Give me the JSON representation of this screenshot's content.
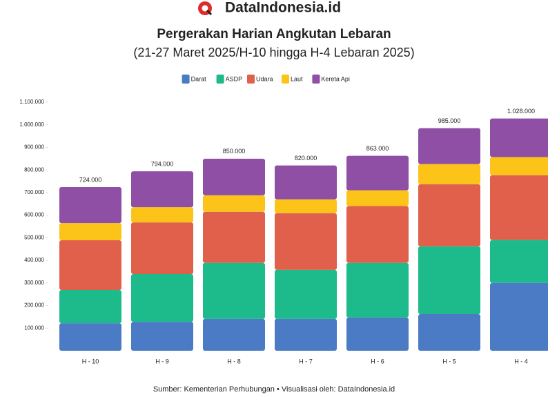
{
  "brand": "DataIndonesia.id",
  "source": "Sumber: Kementerian Perhubungan • Visualisasi oleh: DataIndonesia.id",
  "chart_data": {
    "type": "stacked-bar",
    "title": "Pergerakan Harian Angkutan Lebaran",
    "subtitle": "(21-27 Maret 2025/H-10 hingga H-4 Lebaran 2025)",
    "categories": [
      "H - 10",
      "H - 9",
      "H - 8",
      "H - 7",
      "H - 6",
      "H - 5",
      "H - 4"
    ],
    "series": [
      {
        "name": "Darat",
        "color": "#4a7bc4",
        "values": [
          122000,
          128000,
          141000,
          141000,
          147000,
          162000,
          300000
        ]
      },
      {
        "name": "ASDP",
        "color": "#1dbb8c",
        "values": [
          147000,
          211000,
          248000,
          217000,
          242000,
          300000,
          190000
        ]
      },
      {
        "name": "Udara",
        "color": "#e0604c",
        "values": [
          220000,
          229000,
          226000,
          251000,
          251000,
          275000,
          287000
        ]
      },
      {
        "name": "Laut",
        "color": "#fcc419",
        "values": [
          76000,
          67000,
          73000,
          61000,
          70000,
          89000,
          80000
        ]
      },
      {
        "name": "Kereta Api",
        "color": "#8e4fa5",
        "values": [
          159000,
          159000,
          162000,
          150000,
          153000,
          159000,
          171000
        ]
      }
    ],
    "totals": {
      "values": [
        724000,
        794000,
        850000,
        820000,
        863000,
        985000,
        1028000
      ],
      "value_labels": [
        "724.000",
        "794.000",
        "850.000",
        "820.000",
        "863.000",
        "985.000",
        "1.028.000"
      ]
    },
    "ylim": [
      0,
      1100000
    ],
    "yticks": [
      {
        "value": 100000,
        "label": "100.000"
      },
      {
        "value": 200000,
        "label": "200.000"
      },
      {
        "value": 300000,
        "label": "300.000"
      },
      {
        "value": 400000,
        "label": "400.000"
      },
      {
        "value": 500000,
        "label": "500.000"
      },
      {
        "value": 600000,
        "label": "600.000"
      },
      {
        "value": 700000,
        "label": "700.000"
      },
      {
        "value": 800000,
        "label": "800.000"
      },
      {
        "value": 900000,
        "label": "900.000"
      },
      {
        "value": 1000000,
        "label": "1.000.000"
      },
      {
        "value": 1100000,
        "label": "1.100.000"
      }
    ]
  }
}
